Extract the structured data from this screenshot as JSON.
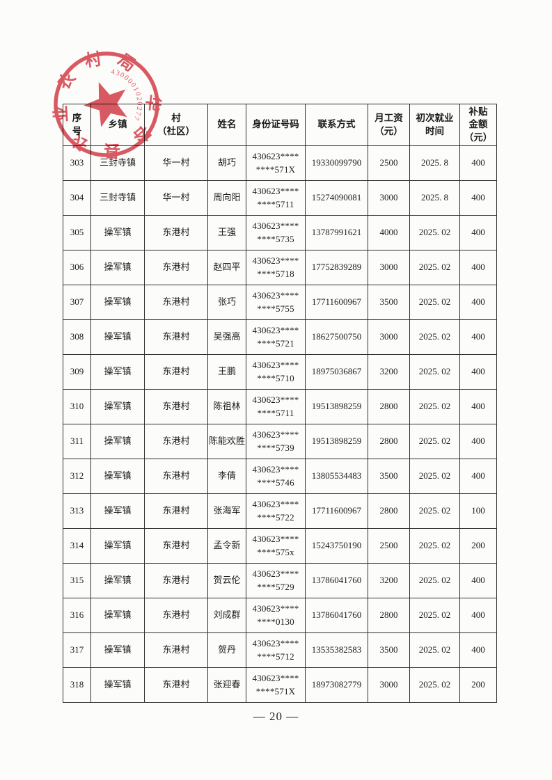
{
  "page": {
    "number_label": "— 20 —"
  },
  "stamp": {
    "arc_text": "华容县农业农村局",
    "serial": "4300001020277",
    "color": "#d8434e"
  },
  "table": {
    "field_order": [
      "no",
      "township",
      "village",
      "name",
      "id",
      "phone",
      "salary",
      "date",
      "subsidy"
    ],
    "headers": [
      {
        "key": "no",
        "lines": [
          "序",
          "号"
        ]
      },
      {
        "key": "township",
        "lines": [
          "乡镇"
        ]
      },
      {
        "key": "village",
        "lines": [
          "村",
          "（社区）"
        ]
      },
      {
        "key": "name",
        "lines": [
          "姓名"
        ]
      },
      {
        "key": "id",
        "lines": [
          "身份证号码"
        ]
      },
      {
        "key": "phone",
        "lines": [
          "联系方式"
        ]
      },
      {
        "key": "salary",
        "lines": [
          "月工资",
          "（元）"
        ]
      },
      {
        "key": "date",
        "lines": [
          "初次就业",
          "时间"
        ]
      },
      {
        "key": "subsidy",
        "lines": [
          "补贴",
          "金额",
          "（元）"
        ]
      }
    ],
    "rows": [
      {
        "no": "303",
        "township": "三封寺镇",
        "village": "华一村",
        "name": "胡巧",
        "id": "430623****\n****571X",
        "phone": "19330099790",
        "salary": "2500",
        "date": "2025. 8",
        "subsidy": "400"
      },
      {
        "no": "304",
        "township": "三封寺镇",
        "village": "华一村",
        "name": "周向阳",
        "id": "430623****\n****5711",
        "phone": "15274090081",
        "salary": "3000",
        "date": "2025. 8",
        "subsidy": "400"
      },
      {
        "no": "305",
        "township": "操军镇",
        "village": "东港村",
        "name": "王强",
        "id": "430623****\n****5735",
        "phone": "13787991621",
        "salary": "4000",
        "date": "2025. 02",
        "subsidy": "400"
      },
      {
        "no": "306",
        "township": "操军镇",
        "village": "东港村",
        "name": "赵四平",
        "id": "430623****\n****5718",
        "phone": "17752839289",
        "salary": "3000",
        "date": "2025. 02",
        "subsidy": "400"
      },
      {
        "no": "307",
        "township": "操军镇",
        "village": "东港村",
        "name": "张巧",
        "id": "430623****\n****5755",
        "phone": "17711600967",
        "salary": "3500",
        "date": "2025. 02",
        "subsidy": "400"
      },
      {
        "no": "308",
        "township": "操军镇",
        "village": "东港村",
        "name": "吴强高",
        "id": "430623****\n****5721",
        "phone": "18627500750",
        "salary": "3000",
        "date": "2025. 02",
        "subsidy": "400"
      },
      {
        "no": "309",
        "township": "操军镇",
        "village": "东港村",
        "name": "王鹏",
        "id": "430623****\n****5710",
        "phone": "18975036867",
        "salary": "3200",
        "date": "2025. 02",
        "subsidy": "400"
      },
      {
        "no": "310",
        "township": "操军镇",
        "village": "东港村",
        "name": "陈祖林",
        "id": "430623****\n****5711",
        "phone": "19513898259",
        "salary": "2800",
        "date": "2025. 02",
        "subsidy": "400"
      },
      {
        "no": "311",
        "township": "操军镇",
        "village": "东港村",
        "name": "陈能欢胜",
        "id": "430623****\n****5739",
        "phone": "19513898259",
        "salary": "2800",
        "date": "2025. 02",
        "subsidy": "400"
      },
      {
        "no": "312",
        "township": "操军镇",
        "village": "东港村",
        "name": "李倩",
        "id": "430623****\n****5746",
        "phone": "13805534483",
        "salary": "3500",
        "date": "2025. 02",
        "subsidy": "400"
      },
      {
        "no": "313",
        "township": "操军镇",
        "village": "东港村",
        "name": "张海军",
        "id": "430623****\n****5722",
        "phone": "17711600967",
        "salary": "2800",
        "date": "2025. 02",
        "subsidy": "100"
      },
      {
        "no": "314",
        "township": "操军镇",
        "village": "东港村",
        "name": "孟令新",
        "id": "430623****\n****575x",
        "phone": "15243750190",
        "salary": "2500",
        "date": "2025. 02",
        "subsidy": "200"
      },
      {
        "no": "315",
        "township": "操军镇",
        "village": "东港村",
        "name": "贺云伦",
        "id": "430623****\n****5729",
        "phone": "13786041760",
        "salary": "3200",
        "date": "2025. 02",
        "subsidy": "400"
      },
      {
        "no": "316",
        "township": "操军镇",
        "village": "东港村",
        "name": "刘成群",
        "id": "430623****\n****0130",
        "phone": "13786041760",
        "salary": "2800",
        "date": "2025. 02",
        "subsidy": "400"
      },
      {
        "no": "317",
        "township": "操军镇",
        "village": "东港村",
        "name": "贺丹",
        "id": "430623****\n****5712",
        "phone": "13535382583",
        "salary": "3500",
        "date": "2025. 02",
        "subsidy": "400"
      },
      {
        "no": "318",
        "township": "操军镇",
        "village": "东港村",
        "name": "张迎春",
        "id": "430623****\n****571X",
        "phone": "18973082779",
        "salary": "3000",
        "date": "2025. 02",
        "subsidy": "200"
      }
    ]
  }
}
